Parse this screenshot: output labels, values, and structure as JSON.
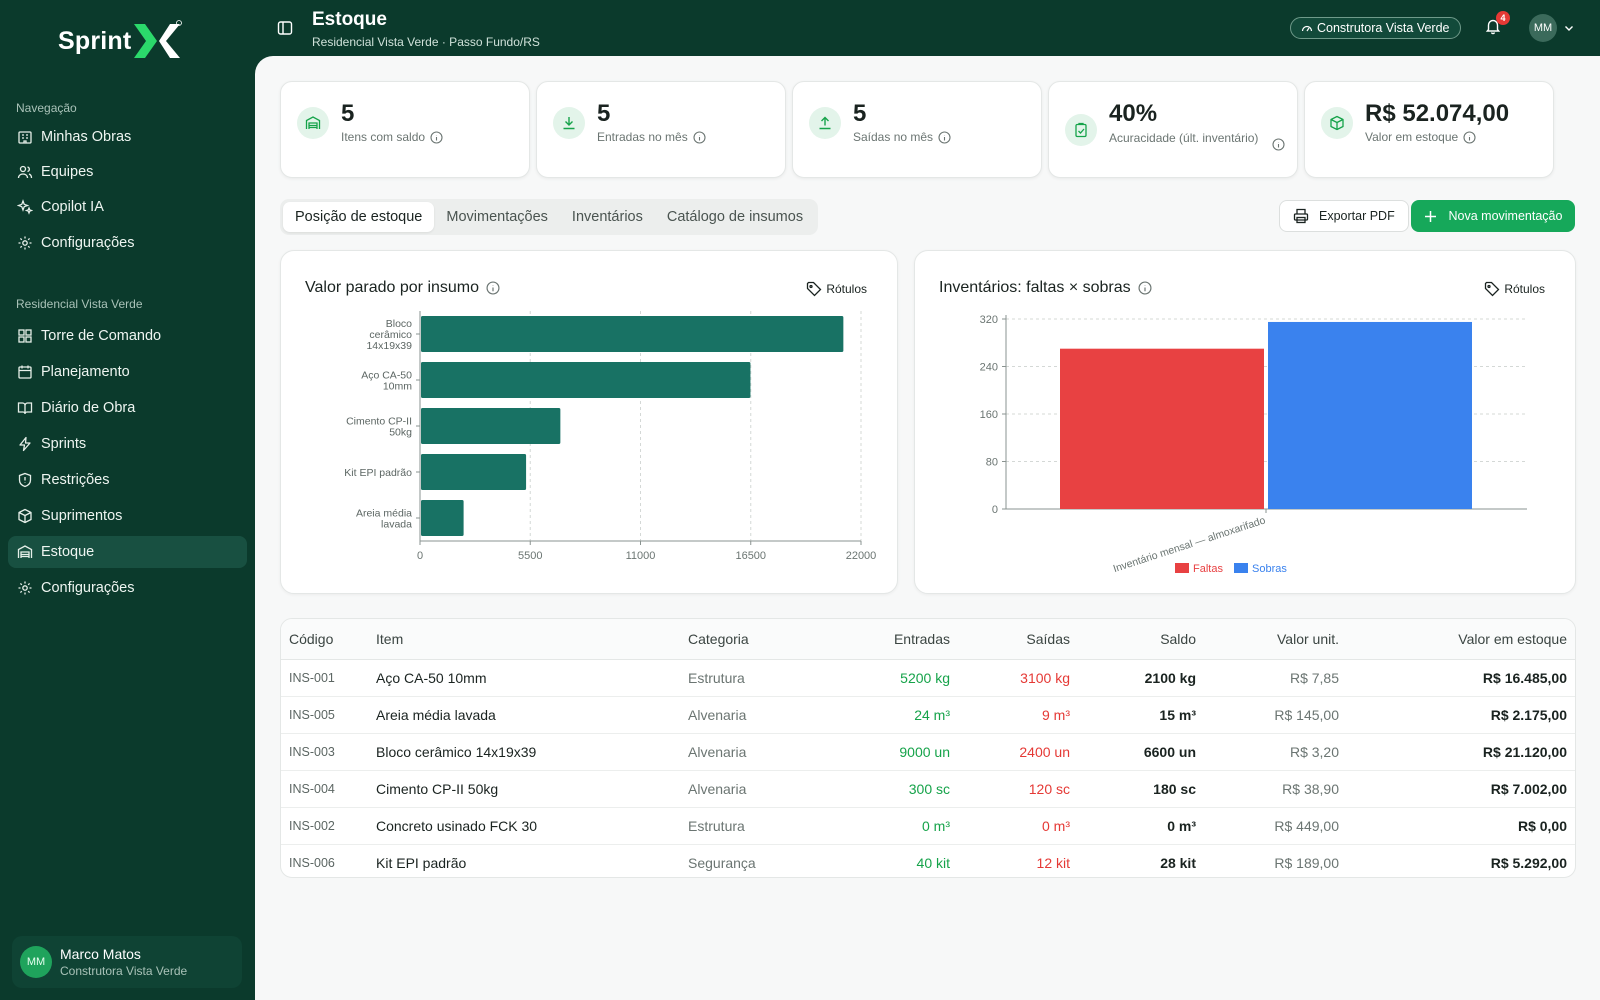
{
  "brand": {
    "name": "Sprint"
  },
  "sidebar": {
    "section1": "Navegação",
    "nav": [
      {
        "label": "Minhas Obras",
        "icon": "building-icon"
      },
      {
        "label": "Equipes",
        "icon": "users-icon"
      },
      {
        "label": "Copilot IA",
        "icon": "sparkles-icon"
      },
      {
        "label": "Configurações",
        "icon": "gear-icon"
      }
    ],
    "section2": "Residencial Vista Verde",
    "project_nav": [
      {
        "label": "Torre de Comando",
        "icon": "grid-icon"
      },
      {
        "label": "Planejamento",
        "icon": "calendar-icon"
      },
      {
        "label": "Diário de Obra",
        "icon": "book-icon"
      },
      {
        "label": "Sprints",
        "icon": "lightning-icon"
      },
      {
        "label": "Restrições",
        "icon": "shield-icon"
      },
      {
        "label": "Suprimentos",
        "icon": "package-icon"
      },
      {
        "label": "Estoque",
        "icon": "warehouse-icon",
        "active": true
      },
      {
        "label": "Configurações",
        "icon": "gear-icon"
      }
    ],
    "user": {
      "initials": "MM",
      "name": "Marco Matos",
      "org": "Construtora Vista Verde"
    }
  },
  "header": {
    "title": "Estoque",
    "subtitle": "Residencial Vista Verde · Passo Fundo/RS",
    "org": "Construtora Vista Verde",
    "notifications": "4",
    "avatar": "MM"
  },
  "kpis": [
    {
      "value": "5",
      "label": "Itens com saldo",
      "icon": "warehouse-icon"
    },
    {
      "value": "5",
      "label": "Entradas no mês",
      "icon": "download-icon"
    },
    {
      "value": "5",
      "label": "Saídas no mês",
      "icon": "upload-icon"
    },
    {
      "value": "40%",
      "label": "Acuracidade (últ. inventário)",
      "icon": "clipboard-check-icon"
    },
    {
      "value": "R$ 52.074,00",
      "label": "Valor em estoque",
      "icon": "package-icon"
    }
  ],
  "tabs": [
    "Posição de estoque",
    "Movimentações",
    "Inventários",
    "Catálogo de insumos"
  ],
  "actions": {
    "export": "Exportar PDF",
    "new": "Nova movimentação"
  },
  "chart_data": [
    {
      "type": "bar",
      "orientation": "horizontal",
      "title": "Valor parado por insumo",
      "toggle_label": "Rótulos",
      "categories": [
        "Bloco cerâmico 14x19x39",
        "Aço CA-50 10mm",
        "Cimento CP-II 50kg",
        "Kit EPI padrão",
        "Areia média lavada"
      ],
      "category_lines": [
        [
          "Bloco",
          "cerâmico",
          "14x19x39"
        ],
        [
          "Aço CA-50",
          "10mm"
        ],
        [
          "Cimento CP-II",
          "50kg"
        ],
        [
          "Kit EPI padrão"
        ],
        [
          "Areia média",
          "lavada"
        ]
      ],
      "values": [
        21120,
        16485,
        7002,
        5292,
        2175
      ],
      "xlim": [
        0,
        22000
      ],
      "xticks": [
        "0",
        "5500",
        "11000",
        "16500",
        "22000"
      ],
      "grid": true,
      "color": "#187264"
    },
    {
      "type": "bar",
      "title": "Inventários: faltas × sobras",
      "toggle_label": "Rótulos",
      "categories": [
        "Inventário mensal — almoxarifado"
      ],
      "series": [
        {
          "name": "Faltas",
          "values": [
            270
          ],
          "color": "#e84142"
        },
        {
          "name": "Sobras",
          "values": [
            315
          ],
          "color": "#3a82ee"
        }
      ],
      "ylim": [
        0,
        320
      ],
      "yticks": [
        "0",
        "80",
        "160",
        "240",
        "320"
      ],
      "grid": true,
      "legend": "bottom"
    }
  ],
  "table": {
    "headers": [
      "Código",
      "Item",
      "Categoria",
      "Entradas",
      "Saídas",
      "Saldo",
      "Valor unit.",
      "Valor em estoque"
    ],
    "rows": [
      [
        "INS-001",
        "Aço CA-50 10mm",
        "Estrutura",
        "5200 kg",
        "3100 kg",
        "2100 kg",
        "R$ 7,85",
        "R$ 16.485,00"
      ],
      [
        "INS-005",
        "Areia média lavada",
        "Alvenaria",
        "24 m³",
        "9 m³",
        "15 m³",
        "R$ 145,00",
        "R$ 2.175,00"
      ],
      [
        "INS-003",
        "Bloco cerâmico 14x19x39",
        "Alvenaria",
        "9000 un",
        "2400 un",
        "6600 un",
        "R$ 3,20",
        "R$ 21.120,00"
      ],
      [
        "INS-004",
        "Cimento CP-II 50kg",
        "Alvenaria",
        "300 sc",
        "120 sc",
        "180 sc",
        "R$ 38,90",
        "R$ 7.002,00"
      ],
      [
        "INS-002",
        "Concreto usinado FCK 30",
        "Estrutura",
        "0 m³",
        "0 m³",
        "0 m³",
        "R$ 449,00",
        "R$ 0,00"
      ],
      [
        "INS-006",
        "Kit EPI padrão",
        "Segurança",
        "40 kit",
        "12 kit",
        "28 kit",
        "R$ 189,00",
        "R$ 5.292,00"
      ]
    ]
  }
}
